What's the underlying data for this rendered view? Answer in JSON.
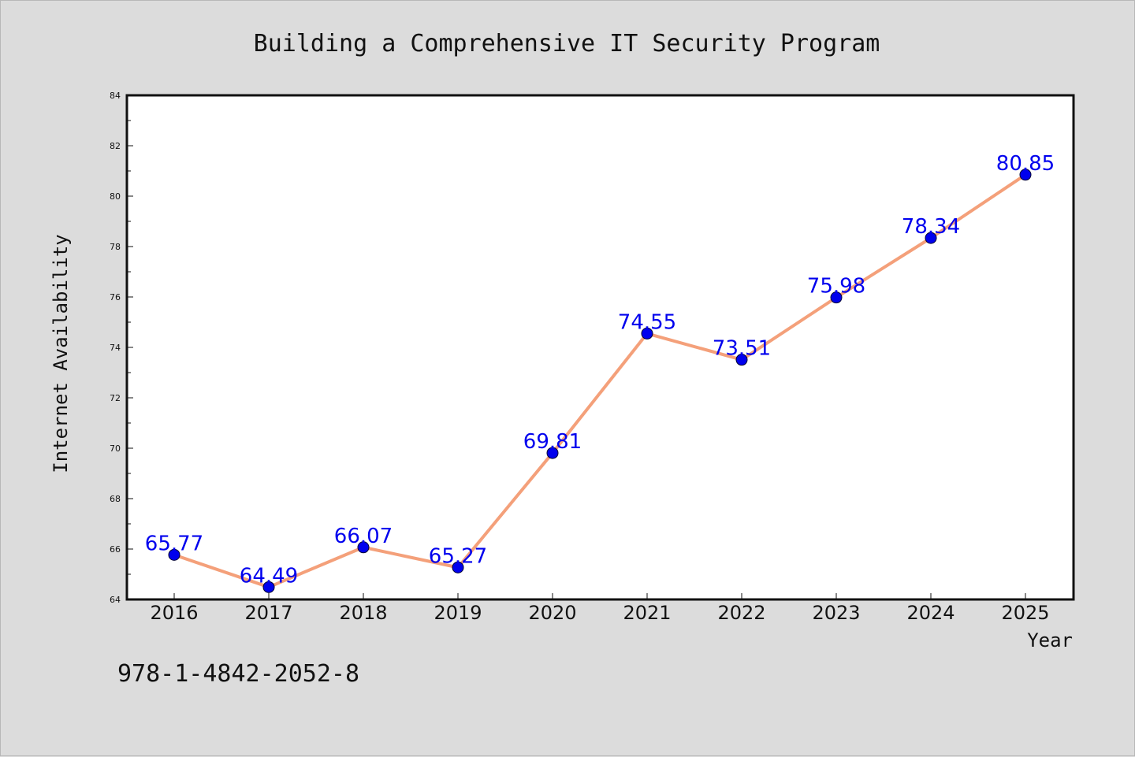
{
  "chart_data": {
    "type": "line",
    "title": "Building a Comprehensive IT Security Program",
    "xlabel": "Year",
    "ylabel": "Internet Availability",
    "categories": [
      "2016",
      "2017",
      "2018",
      "2019",
      "2020",
      "2021",
      "2022",
      "2023",
      "2024",
      "2025"
    ],
    "series": [
      {
        "values": [
          65.77,
          64.49,
          66.07,
          65.27,
          69.81,
          74.55,
          73.51,
          75.98,
          78.34,
          80.85
        ],
        "labels": [
          "65.77",
          "64.49",
          "66.07",
          "65.27",
          "69.81",
          "74.55",
          "73.51",
          "75.98",
          "78.34",
          "80.85"
        ],
        "line_color": "#f4a07a",
        "marker_color": "#0000ee"
      }
    ],
    "ylim": [
      64,
      84
    ],
    "yticks": [
      "64",
      "66",
      "68",
      "70",
      "72",
      "74",
      "76",
      "78",
      "80",
      "82",
      "84"
    ],
    "grid": false,
    "plot_background": "#ffffff",
    "figure_background": "#dcdcdc",
    "label_color": "#0000ee"
  },
  "annotation": {
    "isbn": "978-1-4842-2052-8"
  }
}
